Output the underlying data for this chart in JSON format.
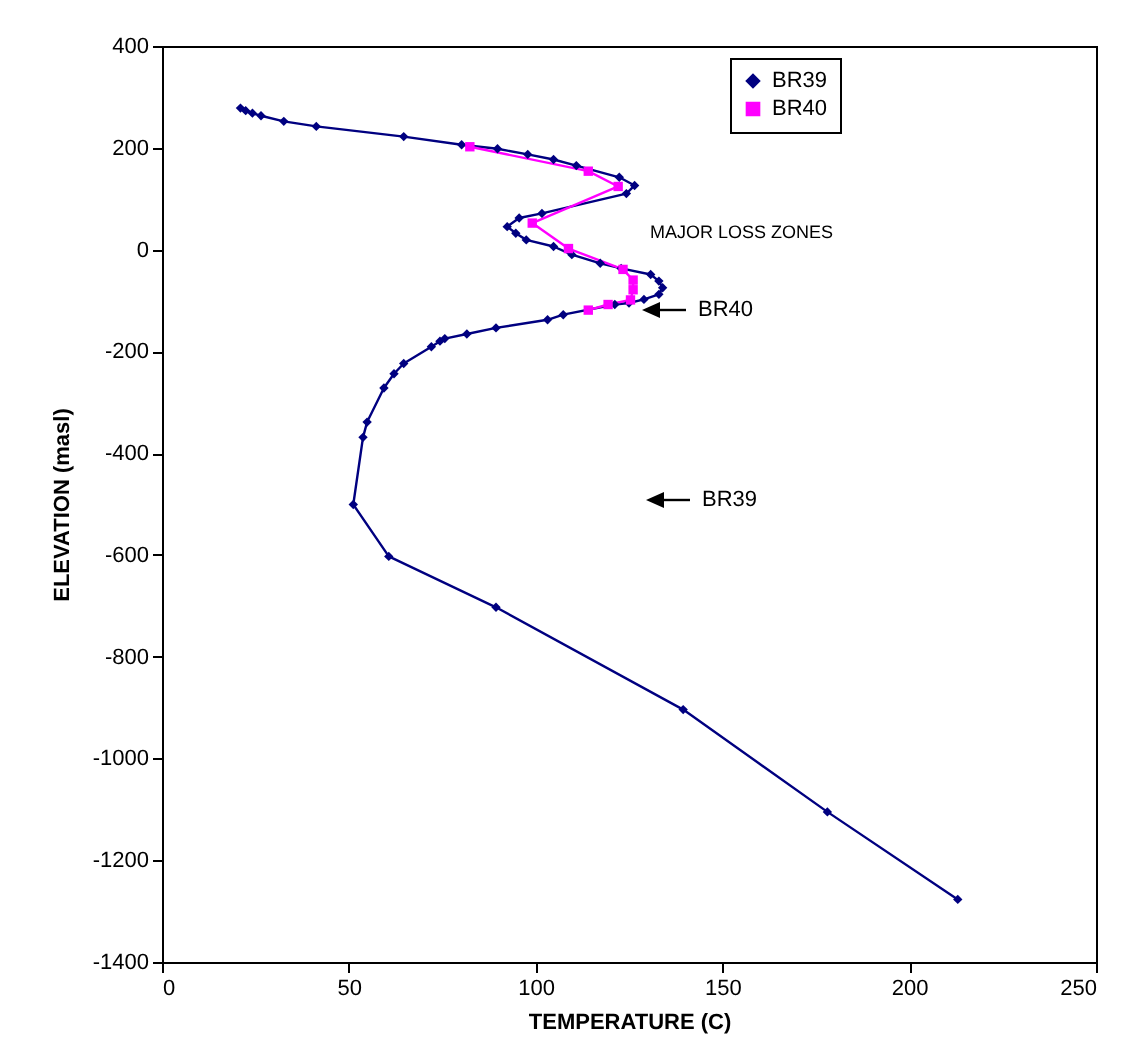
{
  "chart_data": {
    "type": "line",
    "xlabel": "TEMPERATURE  (C)",
    "ylabel": "ELEVATION  (masl)",
    "xlim": [
      0,
      250
    ],
    "xticks": [
      0,
      50,
      100,
      150,
      200,
      250
    ],
    "ylim": [
      -1400,
      400
    ],
    "yticks": [
      -1400,
      -1200,
      -1000,
      -800,
      -600,
      -400,
      -200,
      0,
      200,
      400
    ],
    "grid": false,
    "legend": "top right",
    "series": [
      {
        "name": "BR39",
        "color": "#000080",
        "marker": "diamond",
        "x": [
          21,
          22.4,
          24.2,
          26.5,
          32.6,
          41.3,
          64.7,
          80.2,
          89.8,
          97.9,
          104.8,
          110.9,
          122.4,
          126.5,
          124.3,
          101.7,
          95.6,
          92.4,
          94.7,
          97.5,
          104.8,
          109.7,
          117.3,
          122.9,
          130.8,
          133,
          134,
          133,
          129,
          125,
          121.2,
          107.4,
          103.2,
          89.4,
          81.6,
          75.7,
          74.4,
          72.1,
          64.7,
          62.1,
          59.4,
          54.9,
          53.8,
          51.2,
          60.7,
          89.4,
          139.5,
          178.1,
          213
        ],
        "values": [
          278,
          273,
          268,
          263,
          252,
          242,
          222,
          206,
          198,
          187,
          177,
          165,
          142,
          126,
          110,
          71,
          62,
          45,
          32,
          19,
          6,
          -10,
          -27,
          -37,
          -49,
          -62,
          -75,
          -88,
          -98,
          -105,
          -108,
          -128,
          -138,
          -154,
          -166,
          -175,
          -180,
          -191,
          -224,
          -244,
          -272,
          -339,
          -369,
          -501,
          -603,
          -703,
          -904,
          -1105,
          -1277
        ]
      },
      {
        "name": "BR40",
        "color": "#ff00ff",
        "marker": "square",
        "x": [
          82.4,
          114.1,
          122.1,
          99.1,
          108.8,
          123.4,
          126.1,
          126.1,
          125.4,
          119.4,
          114.1
        ],
        "values": [
          202,
          154,
          124,
          52,
          2,
          -39,
          -60,
          -79,
          -99,
          -108,
          -119
        ]
      }
    ],
    "annotations": [
      "MAJOR LOSS ZONES",
      "BR40",
      "BR39"
    ]
  }
}
